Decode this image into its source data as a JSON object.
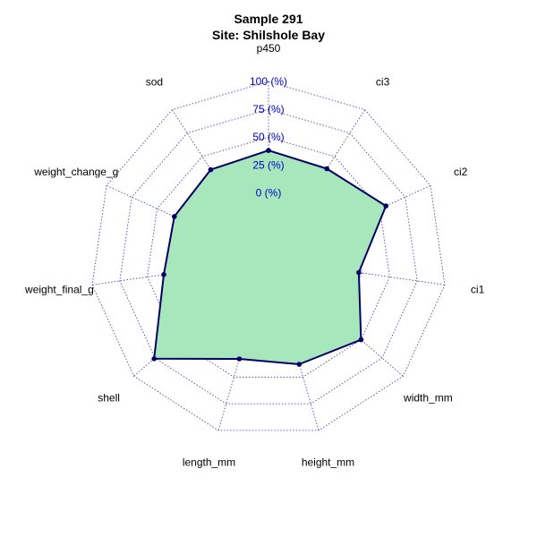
{
  "chart_data": {
    "type": "radar",
    "title": "Sample 291",
    "subtitle": "Site: Shilshole Bay",
    "axes": [
      "p450",
      "ci3",
      "ci2",
      "ci1",
      "width_mm",
      "height_mm",
      "length_mm",
      "shell",
      "weight_final_g",
      "weight_change_g",
      "sod"
    ],
    "values": [
      38,
      37,
      56,
      22,
      50,
      38,
      33,
      76,
      35,
      33,
      36
    ],
    "range": [
      -60,
      100
    ],
    "ticks": [
      0,
      25,
      50,
      75,
      100
    ],
    "tick_labels": [
      "0 (%)",
      "25 (%)",
      "50 (%)",
      "75 (%)",
      "100 (%)"
    ],
    "colors": {
      "fill": "#a8e6bc",
      "line": "#000066",
      "grid": "#3333aa",
      "tick_text": "#0000cc"
    }
  }
}
